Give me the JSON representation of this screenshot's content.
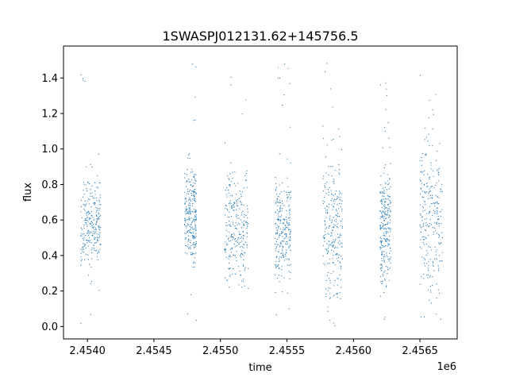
{
  "chart_data": {
    "type": "scatter",
    "title": "1SWASPJ012131.62+145756.5",
    "xlabel": "time",
    "ylabel": "flux",
    "x_offset_label": "1e6",
    "xlim": [
      2.45382,
      2.45678
    ],
    "ylim": [
      -0.07,
      1.58
    ],
    "x_ticks": [
      2.454,
      2.4545,
      2.455,
      2.4555,
      2.456,
      2.4565
    ],
    "x_tick_labels": [
      "2.4540",
      "2.4545",
      "2.4550",
      "2.4555",
      "2.4560",
      "2.4565"
    ],
    "y_ticks": [
      0.0,
      0.2,
      0.4,
      0.6,
      0.8,
      1.0,
      1.2,
      1.4
    ],
    "y_tick_labels": [
      "0.0",
      "0.2",
      "0.4",
      "0.6",
      "0.8",
      "1.0",
      "1.2",
      "1.4"
    ],
    "grid": false,
    "marker_color": "#1f77b4",
    "series": [
      {
        "name": "",
        "clusters": [
          {
            "x_range": [
              2.45395,
              2.4541
            ],
            "y_center": 0.58,
            "y_spread": 0.22
          },
          {
            "x_range": [
              2.45473,
              2.45482
            ],
            "y_center": 0.62,
            "y_spread": 0.28
          },
          {
            "x_range": [
              2.45503,
              2.45521
            ],
            "y_center": 0.55,
            "y_spread": 0.28
          },
          {
            "x_range": [
              2.45541,
              2.45553
            ],
            "y_center": 0.55,
            "y_spread": 0.28
          },
          {
            "x_range": [
              2.45577,
              2.45592
            ],
            "y_center": 0.55,
            "y_spread": 0.42
          },
          {
            "x_range": [
              2.4562,
              2.45628
            ],
            "y_center": 0.55,
            "y_spread": 0.32
          },
          {
            "x_range": [
              2.4565,
              2.45667
            ],
            "y_center": 0.62,
            "y_spread": 0.42
          }
        ]
      }
    ]
  }
}
